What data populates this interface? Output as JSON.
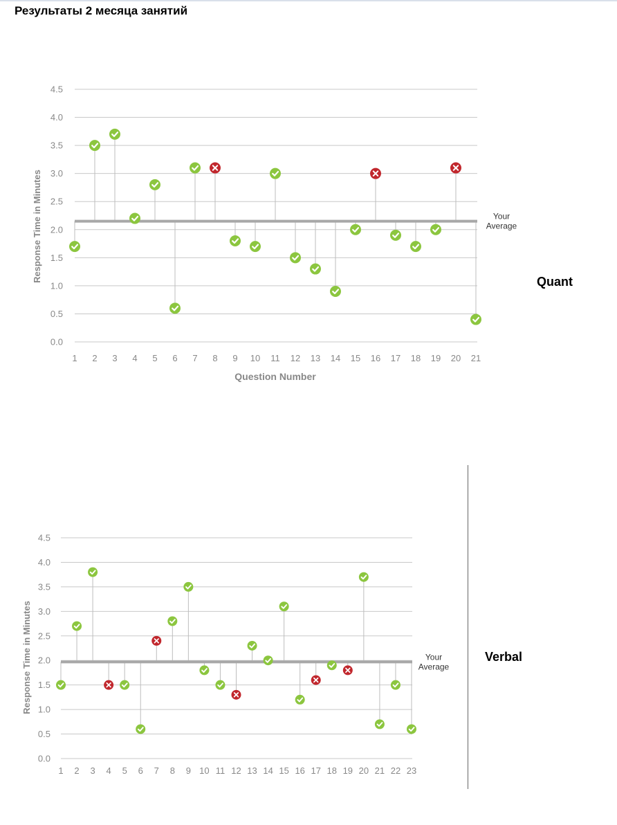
{
  "page": {
    "title": "Результаты 2 месяца занятий",
    "quant_label": "Quant",
    "verbal_label": "Verbal"
  },
  "colors": {
    "correct": "#8cc63f",
    "incorrect": "#c1272d",
    "grid": "#c8c8c8",
    "average_line": "#a8a8a8",
    "axis_text": "#888888"
  },
  "icons": {
    "correct": "check-circle-icon",
    "incorrect": "x-circle-icon"
  },
  "chart_data": [
    {
      "type": "scatter",
      "title": "",
      "xlabel": "Question Number",
      "ylabel": "Response Time in Minutes",
      "ylim": [
        0,
        4.5
      ],
      "yticks": [
        "0.0",
        "0.5",
        "1.0",
        "1.5",
        "2.0",
        "2.5",
        "3.0",
        "3.5",
        "4.0",
        "4.5"
      ],
      "x": [
        "1",
        "2",
        "3",
        "4",
        "5",
        "6",
        "7",
        "8",
        "9",
        "10",
        "11",
        "12",
        "13",
        "14",
        "15",
        "16",
        "17",
        "18",
        "19",
        "20",
        "21"
      ],
      "values": [
        1.7,
        3.5,
        3.7,
        2.2,
        2.8,
        0.6,
        3.1,
        3.1,
        1.8,
        1.7,
        3.0,
        1.5,
        1.3,
        0.9,
        2.0,
        3.0,
        1.9,
        1.7,
        2.0,
        3.1,
        0.4
      ],
      "correct": [
        true,
        true,
        true,
        true,
        true,
        true,
        true,
        false,
        true,
        true,
        true,
        true,
        true,
        true,
        true,
        false,
        true,
        true,
        true,
        false,
        true
      ],
      "average": 2.15,
      "average_label": [
        "Your",
        "Average"
      ],
      "grid": true
    },
    {
      "type": "scatter",
      "title": "",
      "xlabel": "",
      "ylabel": "Response Time in Minutes",
      "ylim": [
        0,
        4.5
      ],
      "yticks": [
        "0.0",
        "0.5",
        "1.0",
        "1.5",
        "2.0",
        "2.5",
        "3.0",
        "3.5",
        "4.0",
        "4.5"
      ],
      "x": [
        "1",
        "2",
        "3",
        "4",
        "5",
        "6",
        "7",
        "8",
        "9",
        "10",
        "11",
        "12",
        "13",
        "14",
        "15",
        "16",
        "17",
        "18",
        "19",
        "20",
        "21",
        "22",
        "23"
      ],
      "values": [
        1.5,
        2.7,
        3.8,
        1.5,
        1.5,
        0.6,
        2.4,
        2.8,
        3.5,
        1.8,
        1.5,
        1.3,
        2.3,
        2.0,
        3.1,
        1.2,
        1.6,
        1.9,
        1.8,
        3.7,
        0.7,
        1.5,
        0.6
      ],
      "correct": [
        true,
        true,
        true,
        false,
        true,
        true,
        false,
        true,
        true,
        true,
        true,
        false,
        true,
        true,
        true,
        true,
        false,
        true,
        false,
        true,
        true,
        true,
        true
      ],
      "average": 1.97,
      "average_label": [
        "Your",
        "Average"
      ],
      "grid": true
    }
  ]
}
